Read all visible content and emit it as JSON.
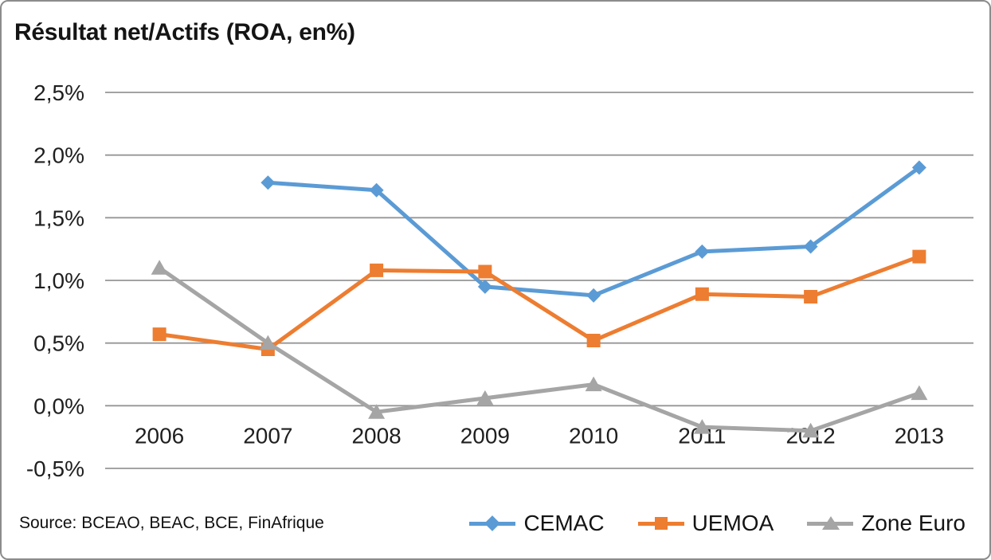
{
  "chart_data": {
    "type": "line",
    "title": "Résultat net/Actifs (ROA, en%)",
    "categories": [
      "2006",
      "2007",
      "2008",
      "2009",
      "2010",
      "2011",
      "2012",
      "2013"
    ],
    "series": [
      {
        "name": "CEMAC",
        "color": "#5B9BD5",
        "marker": "diamond",
        "values": [
          null,
          1.78,
          1.72,
          0.95,
          0.88,
          1.23,
          1.27,
          1.9
        ]
      },
      {
        "name": "UEMOA",
        "color": "#ED7D31",
        "marker": "square",
        "values": [
          0.57,
          0.45,
          1.08,
          1.07,
          0.52,
          0.89,
          0.87,
          1.19
        ]
      },
      {
        "name": "Zone Euro",
        "color": "#A5A5A5",
        "marker": "triangle",
        "values": [
          1.1,
          0.5,
          -0.05,
          0.06,
          0.17,
          -0.17,
          -0.2,
          0.1
        ]
      }
    ],
    "ylim": [
      -0.5,
      2.5
    ],
    "yticks": [
      {
        "label": "2,5%",
        "value": 2.5
      },
      {
        "label": "2,0%",
        "value": 2.0
      },
      {
        "label": "1,5%",
        "value": 1.5
      },
      {
        "label": "1,0%",
        "value": 1.0
      },
      {
        "label": "0,5%",
        "value": 0.5
      },
      {
        "label": "0,0%",
        "value": 0.0
      },
      {
        "label": "-0,5%",
        "value": -0.5
      }
    ],
    "grid": true,
    "gridline_color": "#969696",
    "legend_position": "bottom-right",
    "xlabel": "",
    "ylabel": ""
  },
  "source": {
    "text": "Source: BCEAO, BEAC, BCE, FinAfrique"
  }
}
